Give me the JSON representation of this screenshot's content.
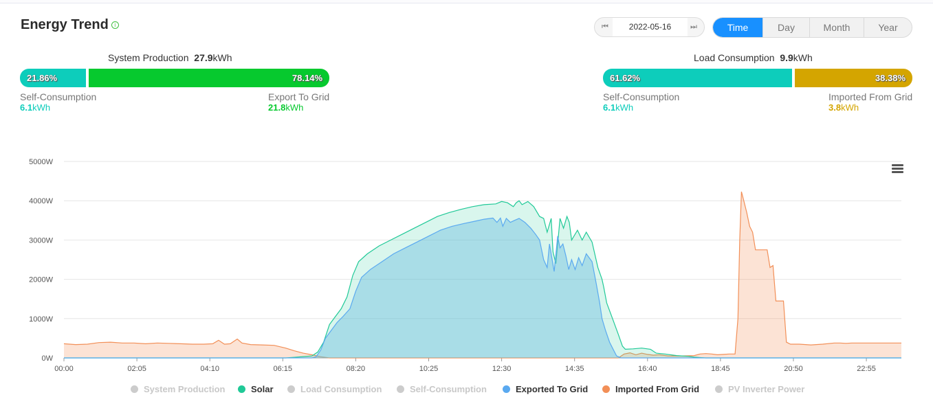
{
  "header": {
    "title": "Energy Trend",
    "info_icon": "info-icon",
    "date": "2022-05-16",
    "tabs": [
      "Time",
      "Day",
      "Month",
      "Year"
    ],
    "active_tab": "Time"
  },
  "production": {
    "label": "System Production",
    "value": "27.9",
    "unit": "kWh",
    "self_pct": "21.86%",
    "export_pct": "78.14%",
    "self_label": "Self-Consumption",
    "self_value": "6.1",
    "self_unit": "kWh",
    "export_label": "Export To Grid",
    "export_value": "21.8",
    "export_unit": "kWh",
    "self_color": "#0dcdbb",
    "export_color": "#06c92e"
  },
  "consumption": {
    "label": "Load Consumption",
    "value": "9.9",
    "unit": "kWh",
    "self_pct": "61.62%",
    "import_pct": "38.38%",
    "self_label": "Self-Consumption",
    "self_value": "6.1",
    "self_unit": "kWh",
    "import_label": "Imported From Grid",
    "import_value": "3.8",
    "import_unit": "kWh",
    "self_color": "#0dcdbb",
    "import_color": "#d4a500"
  },
  "chart_data": {
    "type": "area",
    "y_tick_labels": [
      "0W",
      "1000W",
      "2000W",
      "3000W",
      "4000W",
      "5000W"
    ],
    "ylim": [
      0,
      5000
    ],
    "x_tick_labels": [
      "00:00",
      "02:05",
      "04:10",
      "06:15",
      "08:20",
      "10:25",
      "12:30",
      "14:35",
      "16:40",
      "18:45",
      "20:50",
      "22:55"
    ],
    "x_unit": "minutes since 00:00",
    "xlim": [
      0,
      1435
    ],
    "grid": true,
    "legend_position": "bottom",
    "series": [
      {
        "name": "Solar",
        "color": "#20c997",
        "points": [
          [
            0,
            0
          ],
          [
            380,
            0
          ],
          [
            395,
            15
          ],
          [
            425,
            50
          ],
          [
            435,
            150
          ],
          [
            445,
            400
          ],
          [
            455,
            850
          ],
          [
            465,
            1050
          ],
          [
            475,
            1250
          ],
          [
            485,
            1550
          ],
          [
            495,
            2100
          ],
          [
            505,
            2450
          ],
          [
            520,
            2650
          ],
          [
            540,
            2850
          ],
          [
            560,
            3000
          ],
          [
            580,
            3150
          ],
          [
            600,
            3300
          ],
          [
            620,
            3450
          ],
          [
            640,
            3600
          ],
          [
            660,
            3700
          ],
          [
            680,
            3780
          ],
          [
            700,
            3850
          ],
          [
            720,
            3900
          ],
          [
            740,
            3920
          ],
          [
            750,
            3980
          ],
          [
            760,
            3950
          ],
          [
            770,
            3850
          ],
          [
            775,
            3950
          ],
          [
            780,
            4000
          ],
          [
            785,
            3900
          ],
          [
            795,
            3980
          ],
          [
            805,
            3850
          ],
          [
            815,
            3600
          ],
          [
            822,
            3550
          ],
          [
            828,
            3200
          ],
          [
            835,
            3550
          ],
          [
            838,
            2700
          ],
          [
            843,
            2400
          ],
          [
            850,
            3550
          ],
          [
            856,
            3300
          ],
          [
            862,
            3600
          ],
          [
            866,
            3450
          ],
          [
            870,
            3000
          ],
          [
            880,
            3250
          ],
          [
            888,
            3000
          ],
          [
            895,
            3200
          ],
          [
            905,
            2950
          ],
          [
            915,
            2300
          ],
          [
            922,
            2000
          ],
          [
            925,
            1800
          ],
          [
            930,
            1400
          ],
          [
            940,
            1000
          ],
          [
            950,
            600
          ],
          [
            957,
            300
          ],
          [
            962,
            220
          ],
          [
            975,
            230
          ],
          [
            990,
            250
          ],
          [
            1005,
            220
          ],
          [
            1015,
            120
          ],
          [
            1030,
            100
          ],
          [
            1050,
            60
          ],
          [
            1070,
            40
          ],
          [
            1080,
            20
          ],
          [
            1100,
            0
          ],
          [
            1435,
            0
          ]
        ]
      },
      {
        "name": "Exported To Grid",
        "color": "#5aa9f0",
        "points": [
          [
            0,
            0
          ],
          [
            425,
            0
          ],
          [
            432,
            30
          ],
          [
            440,
            200
          ],
          [
            448,
            500
          ],
          [
            458,
            700
          ],
          [
            468,
            900
          ],
          [
            478,
            1050
          ],
          [
            490,
            1250
          ],
          [
            500,
            1700
          ],
          [
            510,
            2050
          ],
          [
            525,
            2250
          ],
          [
            545,
            2450
          ],
          [
            565,
            2650
          ],
          [
            585,
            2800
          ],
          [
            605,
            2950
          ],
          [
            625,
            3100
          ],
          [
            645,
            3250
          ],
          [
            665,
            3350
          ],
          [
            685,
            3420
          ],
          [
            705,
            3480
          ],
          [
            720,
            3530
          ],
          [
            735,
            3560
          ],
          [
            742,
            3450
          ],
          [
            748,
            3560
          ],
          [
            752,
            3350
          ],
          [
            758,
            3550
          ],
          [
            765,
            3450
          ],
          [
            772,
            3500
          ],
          [
            780,
            3550
          ],
          [
            790,
            3450
          ],
          [
            800,
            3300
          ],
          [
            808,
            3150
          ],
          [
            815,
            3000
          ],
          [
            822,
            2500
          ],
          [
            828,
            2300
          ],
          [
            832,
            2900
          ],
          [
            836,
            2550
          ],
          [
            840,
            2200
          ],
          [
            846,
            3100
          ],
          [
            850,
            2800
          ],
          [
            855,
            2900
          ],
          [
            860,
            2600
          ],
          [
            865,
            2250
          ],
          [
            870,
            2500
          ],
          [
            876,
            2250
          ],
          [
            882,
            2550
          ],
          [
            888,
            2350
          ],
          [
            895,
            2650
          ],
          [
            905,
            2450
          ],
          [
            912,
            1900
          ],
          [
            918,
            1400
          ],
          [
            922,
            1000
          ],
          [
            928,
            700
          ],
          [
            935,
            400
          ],
          [
            940,
            250
          ],
          [
            947,
            50
          ],
          [
            955,
            0
          ],
          [
            1435,
            0
          ]
        ]
      },
      {
        "name": "Imported From Grid",
        "color": "#f28f57",
        "points": [
          [
            0,
            360
          ],
          [
            20,
            340
          ],
          [
            40,
            350
          ],
          [
            60,
            390
          ],
          [
            80,
            400
          ],
          [
            100,
            380
          ],
          [
            120,
            380
          ],
          [
            140,
            360
          ],
          [
            160,
            380
          ],
          [
            180,
            370
          ],
          [
            200,
            360
          ],
          [
            220,
            350
          ],
          [
            240,
            350
          ],
          [
            255,
            360
          ],
          [
            265,
            450
          ],
          [
            275,
            350
          ],
          [
            285,
            360
          ],
          [
            297,
            480
          ],
          [
            305,
            380
          ],
          [
            320,
            340
          ],
          [
            340,
            330
          ],
          [
            360,
            320
          ],
          [
            380,
            250
          ],
          [
            395,
            180
          ],
          [
            410,
            120
          ],
          [
            425,
            80
          ],
          [
            440,
            30
          ],
          [
            455,
            0
          ],
          [
            950,
            0
          ],
          [
            960,
            100
          ],
          [
            970,
            130
          ],
          [
            980,
            80
          ],
          [
            990,
            120
          ],
          [
            1000,
            90
          ],
          [
            1010,
            70
          ],
          [
            1020,
            80
          ],
          [
            1035,
            50
          ],
          [
            1060,
            50
          ],
          [
            1080,
            60
          ],
          [
            1090,
            100
          ],
          [
            1100,
            110
          ],
          [
            1110,
            100
          ],
          [
            1120,
            80
          ],
          [
            1130,
            90
          ],
          [
            1140,
            100
          ],
          [
            1150,
            100
          ],
          [
            1155,
            1000
          ],
          [
            1158,
            3000
          ],
          [
            1161,
            4230
          ],
          [
            1165,
            4000
          ],
          [
            1170,
            3700
          ],
          [
            1175,
            3350
          ],
          [
            1180,
            3200
          ],
          [
            1185,
            2750
          ],
          [
            1190,
            2750
          ],
          [
            1205,
            2750
          ],
          [
            1210,
            2300
          ],
          [
            1215,
            2350
          ],
          [
            1220,
            1450
          ],
          [
            1225,
            1450
          ],
          [
            1233,
            1450
          ],
          [
            1238,
            400
          ],
          [
            1245,
            350
          ],
          [
            1260,
            350
          ],
          [
            1280,
            330
          ],
          [
            1300,
            350
          ],
          [
            1320,
            380
          ],
          [
            1330,
            380
          ],
          [
            1340,
            370
          ],
          [
            1350,
            380
          ],
          [
            1435,
            380
          ]
        ]
      }
    ],
    "legend": [
      {
        "name": "System Production",
        "active": false,
        "color": "#cccccc"
      },
      {
        "name": "Solar",
        "active": true,
        "color": "#20c997"
      },
      {
        "name": "Load Consumption",
        "active": false,
        "color": "#cccccc"
      },
      {
        "name": "Self-Consumption",
        "active": false,
        "color": "#cccccc"
      },
      {
        "name": "Exported To Grid",
        "active": true,
        "color": "#5aa9f0"
      },
      {
        "name": "Imported From Grid",
        "active": true,
        "color": "#f28f57"
      },
      {
        "name": "PV Inverter Power",
        "active": false,
        "color": "#cccccc"
      }
    ]
  }
}
